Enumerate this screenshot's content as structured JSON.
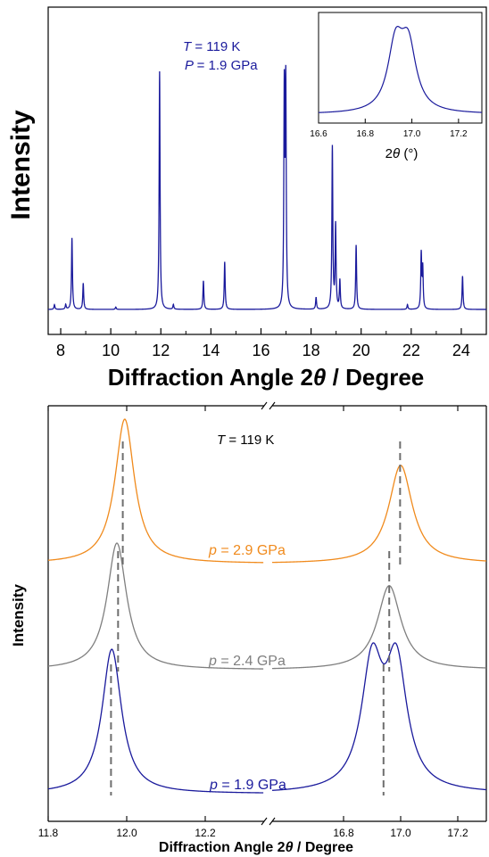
{
  "colors": {
    "navy": "#1a1a9c",
    "orange": "#f08a1c",
    "gray": "#7f7f7f",
    "dash": "#6e6e6e",
    "axis": "#000000"
  },
  "chart_data": [
    {
      "type": "line",
      "xlabel": "Diffraction Angle 2θ / Degree",
      "ylabel": "Intensity",
      "xlim": [
        7.5,
        25
      ],
      "xticks": [
        8,
        10,
        12,
        14,
        16,
        18,
        20,
        22,
        24
      ],
      "xtick_labels": [
        "8",
        "10",
        "12",
        "14",
        "16",
        "18",
        "20",
        "22",
        "24"
      ],
      "annotation": {
        "T": "T = 119 K",
        "P": "P = 1.9 GPa"
      },
      "series": [
        {
          "color": "#1a1a9c",
          "baseline": 0.02,
          "peaks": [
            {
              "x": 7.75,
              "h": 0.02
            },
            {
              "x": 8.2,
              "h": 0.02
            },
            {
              "x": 8.45,
              "h": 0.3
            },
            {
              "x": 8.9,
              "h": 0.11
            },
            {
              "x": 10.2,
              "h": 0.01
            },
            {
              "x": 11.95,
              "h": 1.0
            },
            {
              "x": 12.5,
              "h": 0.02
            },
            {
              "x": 13.7,
              "h": 0.12
            },
            {
              "x": 14.55,
              "h": 0.2
            },
            {
              "x": 16.93,
              "h": 0.9
            },
            {
              "x": 16.99,
              "h": 0.92
            },
            {
              "x": 18.2,
              "h": 0.05
            },
            {
              "x": 18.85,
              "h": 0.68
            },
            {
              "x": 18.98,
              "h": 0.35
            },
            {
              "x": 19.15,
              "h": 0.12
            },
            {
              "x": 19.8,
              "h": 0.27
            },
            {
              "x": 21.85,
              "h": 0.02
            },
            {
              "x": 22.4,
              "h": 0.23
            },
            {
              "x": 22.46,
              "h": 0.17
            },
            {
              "x": 24.05,
              "h": 0.14
            }
          ]
        }
      ],
      "inset": {
        "xlim": [
          16.6,
          17.3
        ],
        "xticks": [
          16.6,
          16.8,
          17.0,
          17.2
        ],
        "xtick_labels": [
          "16.6",
          "16.8",
          "17.0",
          "17.2"
        ],
        "xlabel": "2θ (°)",
        "peaks": [
          {
            "x": 16.93,
            "h": 1.0
          },
          {
            "x": 16.985,
            "h": 0.97
          }
        ]
      }
    },
    {
      "type": "line",
      "xlabel": "Diffraction Angle 2θ / Degree",
      "ylabel": "Intensity",
      "broken_x_axis": true,
      "segments": [
        {
          "xlim": [
            11.8,
            12.35
          ],
          "xticks": [
            11.8,
            12.0,
            12.2
          ],
          "xtick_labels": [
            "11.8",
            "12.0",
            "12.2"
          ]
        },
        {
          "xlim": [
            16.55,
            17.3
          ],
          "xticks": [
            16.8,
            17.0,
            17.2
          ],
          "xtick_labels": [
            "16.8",
            "17.0",
            "17.2"
          ]
        }
      ],
      "annotation": "T = 119 K",
      "series": [
        {
          "name": "p = 2.9 GPa",
          "label_var": "p",
          "label_value": "= 2.9 GPa",
          "color": "#f08a1c",
          "peaks_left": [
            {
              "x": 11.995,
              "h": 1.0
            }
          ],
          "peaks_right": [
            {
              "x": 17.0,
              "h": 0.82
            }
          ],
          "dash_left": 11.99,
          "dash_right": 16.998
        },
        {
          "name": "p = 2.4 GPa",
          "label_var": "p",
          "label_value": "= 2.4 GPa",
          "color": "#7f7f7f",
          "peaks_left": [
            {
              "x": 11.975,
              "h": 1.0
            }
          ],
          "peaks_right": [
            {
              "x": 16.96,
              "h": 0.8
            }
          ],
          "dash_left": 11.978,
          "dash_right": 16.96
        },
        {
          "name": "p = 1.9 GPa",
          "label_var": "p",
          "label_value": "= 1.9 GPa",
          "color": "#1a1a9c",
          "peaks_left": [
            {
              "x": 11.962,
              "h": 1.0
            }
          ],
          "peaks_right": [
            {
              "x": 16.9,
              "h": 0.85
            },
            {
              "x": 16.985,
              "h": 0.85
            }
          ],
          "dash_left": 11.96,
          "dash_right": 16.94
        }
      ]
    }
  ]
}
